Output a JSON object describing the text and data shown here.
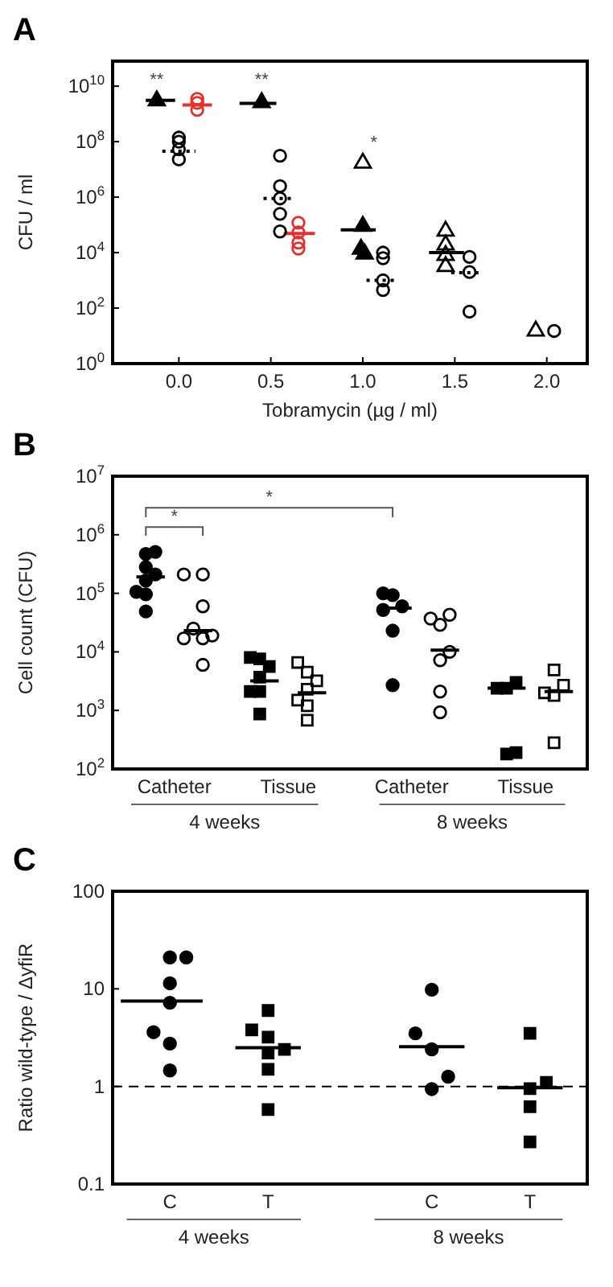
{
  "chart_data": [
    {
      "type": "scatter",
      "title": "A",
      "xlabel": "Tobramycin (µg / ml)",
      "ylabel": "CFU / ml",
      "log": "y",
      "xlim": [
        -0.36,
        2.22
      ],
      "xticks": [
        {
          "value": 0,
          "label": "0.0"
        },
        {
          "value": 0.5,
          "label": "0.5"
        },
        {
          "value": 1,
          "label": "1.0"
        },
        {
          "value": 1.5,
          "label": "1.5"
        },
        {
          "value": 2,
          "label": "2.0"
        }
      ],
      "ylim": [
        1,
        80000000000
      ],
      "yticks": [
        {
          "value": 1,
          "label": "10$^{0}$"
        },
        {
          "value": 100,
          "label": "10$^{2}$"
        },
        {
          "value": 10000,
          "label": "10$^{4}$"
        },
        {
          "value": 1000000,
          "label": "10$^{6}$"
        },
        {
          "value": 100000000,
          "label": "10$^{8}$"
        },
        {
          "value": 10000000000,
          "label": "10$^{10}$"
        }
      ],
      "annotations": [
        "**",
        "**",
        "*"
      ],
      "series": [
        {
          "marker": "triangle",
          "color": "#000000",
          "x": [
            -0.12,
            0.45,
            1.0,
            0.99,
            1.01
          ],
          "values": [
            3000000000,
            2600000000,
            90000,
            13500,
            9000
          ]
        },
        {
          "marker": "triangle",
          "color": "#000000",
          "x": [
            1.0,
            1.45,
            1.45,
            1.45,
            1.45,
            1.94
          ],
          "values": [
            17000000,
            60000,
            19000,
            8000,
            3200,
            15
          ]
        },
        {
          "marker": "circle",
          "color": "#000000",
          "x": [
            0,
            0,
            0,
            0,
            0.55,
            0.55,
            0.55,
            0.55,
            0.55,
            1.11,
            1.11,
            1.11,
            1.11,
            1.58,
            1.58,
            1.58,
            2.04
          ],
          "values": [
            140000000,
            100000000,
            53000000,
            23000000,
            31000000,
            2500000,
            900000,
            250000,
            58000,
            10000,
            6300,
            1000,
            450,
            7000,
            2000,
            75,
            15
          ]
        },
        {
          "marker": "circle",
          "color": "#e8302a",
          "x": [
            0.1,
            0.1,
            0.1,
            0.65,
            0.65,
            0.65,
            0.65
          ],
          "values": [
            3500000000,
            2500000000,
            1400000000,
            120000,
            53000,
            23000,
            14000
          ]
        },
        {
          "type": "line",
          "marker": "none",
          "line_style": "solid",
          "color": "#000000",
          "x": [
            -0.18,
            -0.02
          ],
          "values": [
            3100000000,
            3100000000
          ]
        },
        {
          "type": "line",
          "marker": "none",
          "line_style": "solid",
          "color": "#000000",
          "x": [
            0.33,
            0.53
          ],
          "values": [
            2400000000,
            2400000000
          ]
        },
        {
          "type": "line",
          "marker": "none",
          "line_style": "solid",
          "color": "#000000",
          "x": [
            0.88,
            1.07
          ],
          "values": [
            66000,
            66000
          ]
        },
        {
          "type": "line",
          "marker": "none",
          "line_style": "solid",
          "color": "#000000",
          "x": [
            1.36,
            1.55
          ],
          "values": [
            10000,
            10000
          ]
        },
        {
          "type": "line",
          "marker": "none",
          "line_style": "dotted",
          "color": "#000000",
          "x": [
            -0.09,
            0.09
          ],
          "values": [
            45000000,
            45000000
          ]
        },
        {
          "type": "line",
          "marker": "none",
          "line_style": "dotted",
          "color": "#000000",
          "x": [
            0.46,
            0.63
          ],
          "values": [
            900000,
            900000
          ]
        },
        {
          "type": "line",
          "marker": "none",
          "line_style": "dotted",
          "color": "#000000",
          "x": [
            1.02,
            1.19
          ],
          "values": [
            1000,
            1000
          ]
        },
        {
          "type": "line",
          "marker": "none",
          "line_style": "dotted",
          "color": "#000000",
          "x": [
            1.48,
            1.64
          ],
          "values": [
            1900,
            1900
          ]
        },
        {
          "type": "line",
          "marker": "none",
          "line_style": "solid",
          "color": "#e8302a",
          "x": [
            0.02,
            0.18
          ],
          "values": [
            2100000000,
            2100000000
          ]
        },
        {
          "type": "line",
          "marker": "none",
          "line_style": "solid",
          "color": "#e8302a",
          "x": [
            0.57,
            0.74
          ],
          "values": [
            49000,
            49000
          ]
        }
      ]
    },
    {
      "type": "scatter",
      "title": "B",
      "ylabel": "Cell count (CFU)",
      "log": "y",
      "categories": [
        null,
        null,
        null,
        null,
        null,
        null,
        "Catheter",
        null,
        null,
        null,
        null,
        null,
        null,
        null,
        null,
        null,
        null,
        null,
        "Tissue",
        null,
        null,
        null,
        null,
        null,
        null,
        null,
        null,
        null,
        null,
        null,
        null,
        "Catheter",
        null,
        null,
        null,
        null,
        null,
        null,
        null,
        null,
        null,
        null,
        null,
        "Tissue",
        null,
        null,
        null,
        null,
        null,
        null
      ],
      "ylim": [
        100,
        10000000
      ],
      "yticks": [
        {
          "value": 100,
          "label": "10$^{2}$"
        },
        {
          "value": 1000,
          "label": "10$^{3}$"
        },
        {
          "value": 10000,
          "label": "10$^{4}$"
        },
        {
          "value": 100000,
          "label": "10$^{5}$"
        },
        {
          "value": 1000000,
          "label": "10$^{6}$"
        },
        {
          "value": 10000000,
          "label": "10$^{7}$"
        }
      ],
      "annotations": [
        "*",
        "*",
        "4 weeks",
        "8 weeks"
      ],
      "series": [
        {
          "marker": "circle",
          "color": "#000000",
          "values": [
            null,
            null,
            106000,
            470000,
            510000,
            null,
            null,
            null,
            null,
            null,
            null,
            null,
            null,
            null,
            null,
            null,
            null,
            null,
            null,
            null,
            null,
            null,
            null,
            null,
            null,
            null,
            null,
            null,
            100000,
            93000,
            60000,
            null,
            null,
            null,
            null,
            null,
            null,
            null,
            null,
            null,
            null,
            null,
            null,
            null,
            null,
            null,
            null,
            null,
            null,
            null
          ]
        },
        {
          "marker": "circle",
          "color": "#000000",
          "values": [
            null,
            null,
            null,
            280000,
            210000,
            null,
            null,
            null,
            null,
            null,
            null,
            null,
            null,
            null,
            null,
            null,
            null,
            null,
            null,
            null,
            null,
            null,
            null,
            null,
            null,
            null,
            null,
            null,
            52000,
            23000,
            null,
            null,
            null,
            null,
            null,
            null,
            null,
            null,
            null,
            null,
            null,
            null,
            null,
            null,
            null,
            null,
            null,
            null,
            null,
            null
          ]
        },
        {
          "marker": "circle",
          "color": "#000000",
          "values": [
            null,
            null,
            null,
            165000,
            null,
            null,
            null,
            null,
            null,
            null,
            null,
            null,
            null,
            null,
            null,
            null,
            null,
            null,
            null,
            null,
            null,
            null,
            null,
            null,
            null,
            null,
            null,
            null,
            null,
            2700,
            null,
            null,
            null,
            null,
            null,
            null,
            null,
            null,
            null,
            null,
            null,
            null,
            null,
            null,
            null,
            null,
            null,
            null,
            null,
            null
          ]
        },
        {
          "marker": "circle",
          "color": "#000000",
          "values": [
            null,
            null,
            null,
            96000,
            null,
            null,
            null,
            null,
            null,
            null,
            null,
            null,
            null,
            null,
            null,
            null,
            null,
            null,
            null,
            null,
            null,
            null,
            null,
            null,
            null,
            null,
            null,
            null,
            null,
            null,
            null,
            null,
            null,
            null,
            null,
            null,
            null,
            null,
            null,
            null,
            null,
            null,
            null,
            null,
            null,
            null,
            null,
            null,
            null,
            null
          ]
        },
        {
          "marker": "circle",
          "color": "#000000",
          "values": [
            null,
            null,
            null,
            49000,
            null,
            null,
            null,
            null,
            null,
            null,
            null,
            null,
            null,
            null,
            null,
            null,
            null,
            null,
            null,
            null,
            null,
            null,
            null,
            null,
            null,
            null,
            null,
            null,
            null,
            null,
            null,
            null,
            null,
            null,
            null,
            null,
            null,
            null,
            null,
            null,
            null,
            null,
            null,
            null,
            null,
            null,
            null,
            null,
            null,
            null
          ]
        },
        {
          "marker": "circle",
          "color": "#000000",
          "values": [
            null,
            null,
            null,
            null,
            null,
            null,
            null,
            210000,
            25000,
            210000,
            19000,
            null,
            null,
            null,
            null,
            null,
            null,
            null,
            null,
            null,
            null,
            null,
            null,
            null,
            null,
            null,
            null,
            null,
            null,
            null,
            null,
            null,
            null,
            37000,
            29000,
            43000,
            null,
            null,
            null,
            null,
            null,
            null,
            null,
            null,
            null,
            null,
            null,
            null,
            null,
            null
          ]
        },
        {
          "marker": "circle",
          "color": "#000000",
          "values": [
            null,
            null,
            null,
            null,
            null,
            null,
            null,
            17000,
            null,
            60000,
            null,
            null,
            null,
            null,
            null,
            null,
            null,
            null,
            null,
            null,
            null,
            null,
            null,
            null,
            null,
            null,
            null,
            null,
            null,
            null,
            null,
            null,
            null,
            null,
            7200,
            10000,
            null,
            null,
            null,
            null,
            null,
            null,
            null,
            null,
            null,
            null,
            null,
            null,
            null,
            null
          ]
        },
        {
          "marker": "circle",
          "color": "#000000",
          "values": [
            null,
            null,
            null,
            null,
            null,
            null,
            null,
            null,
            null,
            17000,
            null,
            null,
            null,
            null,
            null,
            null,
            null,
            null,
            null,
            null,
            null,
            null,
            null,
            null,
            null,
            null,
            null,
            null,
            null,
            null,
            null,
            null,
            null,
            null,
            2100,
            null,
            null,
            null,
            null,
            null,
            null,
            null,
            null,
            null,
            null,
            null,
            null,
            null,
            null,
            null
          ]
        },
        {
          "marker": "circle",
          "color": "#000000",
          "values": [
            null,
            null,
            null,
            null,
            null,
            null,
            null,
            null,
            null,
            6000,
            null,
            null,
            null,
            null,
            null,
            null,
            null,
            null,
            null,
            null,
            null,
            null,
            null,
            null,
            null,
            null,
            null,
            null,
            null,
            null,
            null,
            null,
            null,
            null,
            930,
            null,
            null,
            null,
            null,
            null,
            null,
            null,
            null,
            null,
            null,
            null,
            null,
            null,
            null,
            null
          ]
        },
        {
          "marker": "square",
          "color": "#000000",
          "values": [
            null,
            null,
            null,
            null,
            null,
            null,
            null,
            null,
            null,
            null,
            null,
            null,
            null,
            null,
            8000,
            7600,
            5600,
            null,
            null,
            null,
            null,
            null,
            null,
            null,
            null,
            null,
            null,
            null,
            null,
            null,
            null,
            null,
            null,
            null,
            null,
            null,
            null,
            null,
            null,
            null,
            2400,
            2400,
            3000,
            null,
            null,
            null,
            null,
            null,
            null,
            null
          ]
        },
        {
          "marker": "square",
          "color": "#000000",
          "values": [
            null,
            null,
            null,
            null,
            null,
            null,
            null,
            null,
            null,
            null,
            null,
            null,
            null,
            null,
            2100,
            3700,
            null,
            null,
            null,
            null,
            null,
            null,
            null,
            null,
            null,
            null,
            null,
            null,
            null,
            null,
            null,
            null,
            null,
            null,
            null,
            null,
            null,
            null,
            null,
            null,
            null,
            180,
            190,
            null,
            null,
            null,
            null,
            null,
            null,
            null
          ]
        },
        {
          "marker": "square",
          "color": "#000000",
          "values": [
            null,
            null,
            null,
            null,
            null,
            null,
            null,
            null,
            null,
            null,
            null,
            null,
            null,
            null,
            null,
            2100,
            null,
            null,
            null,
            null,
            null,
            null,
            null,
            null,
            null,
            null,
            null,
            null,
            null,
            null,
            null,
            null,
            null,
            null,
            null,
            null,
            null,
            null,
            null,
            null,
            null,
            null,
            null,
            null,
            null,
            null,
            null,
            null,
            null,
            null
          ]
        },
        {
          "marker": "square",
          "color": "#000000",
          "values": [
            null,
            null,
            null,
            null,
            null,
            null,
            null,
            null,
            null,
            null,
            null,
            null,
            null,
            null,
            null,
            870,
            null,
            null,
            null,
            null,
            null,
            null,
            null,
            null,
            null,
            null,
            null,
            null,
            null,
            null,
            null,
            null,
            null,
            null,
            null,
            null,
            null,
            null,
            null,
            null,
            null,
            null,
            null,
            null,
            null,
            null,
            null,
            null,
            null,
            null
          ]
        },
        {
          "marker": "square",
          "color": "#000000",
          "values": [
            null,
            null,
            null,
            null,
            null,
            null,
            null,
            null,
            null,
            null,
            null,
            null,
            null,
            null,
            null,
            null,
            null,
            null,
            null,
            6600,
            4500,
            3200,
            null,
            null,
            null,
            null,
            null,
            null,
            null,
            null,
            null,
            null,
            null,
            null,
            null,
            null,
            null,
            null,
            null,
            null,
            null,
            null,
            null,
            null,
            null,
            2000,
            4900,
            2700,
            null,
            null
          ]
        },
        {
          "marker": "square",
          "color": "#000000",
          "values": [
            null,
            null,
            null,
            null,
            null,
            null,
            null,
            null,
            null,
            null,
            null,
            null,
            null,
            null,
            null,
            null,
            null,
            null,
            null,
            1500,
            2300,
            null,
            null,
            null,
            null,
            null,
            null,
            null,
            null,
            null,
            null,
            null,
            null,
            null,
            null,
            null,
            null,
            null,
            null,
            null,
            null,
            null,
            null,
            null,
            null,
            null,
            1800,
            null,
            null,
            null
          ]
        },
        {
          "marker": "square",
          "color": "#000000",
          "values": [
            null,
            null,
            null,
            null,
            null,
            null,
            null,
            null,
            null,
            null,
            null,
            null,
            null,
            null,
            null,
            null,
            null,
            null,
            null,
            null,
            1200,
            null,
            null,
            null,
            null,
            null,
            null,
            null,
            null,
            null,
            null,
            null,
            null,
            null,
            null,
            null,
            null,
            null,
            null,
            null,
            null,
            null,
            null,
            null,
            null,
            null,
            280,
            null,
            null,
            null
          ]
        },
        {
          "marker": "square",
          "color": "#000000",
          "values": [
            null,
            null,
            null,
            null,
            null,
            null,
            null,
            null,
            null,
            null,
            null,
            null,
            null,
            null,
            null,
            null,
            null,
            null,
            null,
            null,
            680,
            null,
            null,
            null,
            null,
            null,
            null,
            null,
            null,
            null,
            null,
            null,
            null,
            null,
            null,
            null,
            null,
            null,
            null,
            null,
            null,
            null,
            null,
            null,
            null,
            null,
            null,
            null,
            null,
            null
          ]
        },
        {
          "type": "line",
          "marker": "none",
          "line_style": "solid",
          "color": "#000000",
          "values": [
            null,
            null,
            190000,
            190000,
            190000,
            190000,
            null,
            23000,
            23000,
            23000,
            23000,
            null,
            null,
            null,
            3200,
            3200,
            3200,
            3200,
            null,
            2000,
            2000,
            2000,
            2000,
            null,
            null,
            null,
            null,
            null,
            56000,
            56000,
            56000,
            56000,
            null,
            10700,
            10700,
            10700,
            10700,
            null,
            null,
            2400,
            2400,
            2400,
            2400,
            2400,
            null,
            2100,
            2100,
            2100,
            2100,
            null
          ]
        }
      ]
    },
    {
      "type": "scatter",
      "title": "C",
      "ylabel": "Ratio wild-type / ΔyfiR",
      "log": "y",
      "categories": [
        null,
        null,
        null,
        "C",
        null,
        null,
        null,
        null,
        null,
        "T",
        null,
        null,
        null,
        null,
        null,
        null,
        null,
        null,
        null,
        "C",
        null,
        null,
        null,
        null,
        null,
        "T",
        null,
        null,
        null
      ],
      "ylim": [
        0.1,
        100
      ],
      "yticks": [
        0.1,
        1,
        10,
        100
      ],
      "annotations": [
        "4 weeks",
        "8 weeks"
      ],
      "ref_lines": [
        {
          "axis": "y",
          "value": 1,
          "line_style": "dashed",
          "color": "#000000"
        }
      ],
      "series": [
        {
          "marker": "circle",
          "color": "#000000",
          "values": [
            null,
            null,
            3.6,
            21,
            21,
            null,
            null,
            null,
            null,
            null,
            null,
            null,
            null,
            null,
            null,
            null,
            null,
            null,
            3.5,
            9.8,
            1.26,
            null,
            null,
            null,
            null,
            null,
            null,
            null,
            null
          ]
        },
        {
          "marker": "circle",
          "color": "#000000",
          "values": [
            null,
            null,
            null,
            11.4,
            null,
            null,
            null,
            null,
            null,
            null,
            null,
            null,
            null,
            null,
            null,
            null,
            null,
            null,
            null,
            2.4,
            null,
            null,
            null,
            null,
            null,
            null,
            null,
            null,
            null
          ]
        },
        {
          "marker": "circle",
          "color": "#000000",
          "values": [
            null,
            null,
            null,
            7.2,
            null,
            null,
            null,
            null,
            null,
            null,
            null,
            null,
            null,
            null,
            null,
            null,
            null,
            null,
            null,
            0.94,
            null,
            null,
            null,
            null,
            null,
            null,
            null,
            null,
            null
          ]
        },
        {
          "marker": "circle",
          "color": "#000000",
          "values": [
            null,
            null,
            null,
            2.75,
            null,
            null,
            null,
            null,
            null,
            null,
            null,
            null,
            null,
            null,
            null,
            null,
            null,
            null,
            null,
            null,
            null,
            null,
            null,
            null,
            null,
            null,
            null,
            null,
            null
          ]
        },
        {
          "marker": "circle",
          "color": "#000000",
          "values": [
            null,
            null,
            null,
            1.46,
            null,
            null,
            null,
            null,
            null,
            null,
            null,
            null,
            null,
            null,
            null,
            null,
            null,
            null,
            null,
            null,
            null,
            null,
            null,
            null,
            null,
            null,
            null,
            null,
            null
          ]
        },
        {
          "marker": "square",
          "color": "#000000",
          "values": [
            null,
            null,
            null,
            null,
            null,
            null,
            null,
            null,
            3.8,
            6,
            2.4,
            null,
            null,
            null,
            null,
            null,
            null,
            null,
            null,
            null,
            null,
            null,
            null,
            null,
            null,
            3.5,
            1.1,
            null,
            null
          ]
        },
        {
          "marker": "square",
          "color": "#000000",
          "values": [
            null,
            null,
            null,
            null,
            null,
            null,
            null,
            null,
            null,
            3.2,
            null,
            null,
            null,
            null,
            null,
            null,
            null,
            null,
            null,
            null,
            null,
            null,
            null,
            null,
            null,
            0.95,
            null,
            null,
            null
          ]
        },
        {
          "marker": "square",
          "color": "#000000",
          "values": [
            null,
            null,
            null,
            null,
            null,
            null,
            null,
            null,
            null,
            2.2,
            null,
            null,
            null,
            null,
            null,
            null,
            null,
            null,
            null,
            null,
            null,
            null,
            null,
            null,
            null,
            0.62,
            null,
            null,
            null
          ]
        },
        {
          "marker": "square",
          "color": "#000000",
          "values": [
            null,
            null,
            null,
            null,
            null,
            null,
            null,
            null,
            null,
            1.5,
            null,
            null,
            null,
            null,
            null,
            null,
            null,
            null,
            null,
            null,
            null,
            null,
            null,
            null,
            null,
            0.27,
            null,
            null,
            null
          ]
        },
        {
          "marker": "square",
          "color": "#000000",
          "values": [
            null,
            null,
            null,
            null,
            null,
            null,
            null,
            null,
            null,
            0.58,
            null,
            null,
            null,
            null,
            null,
            null,
            null,
            null,
            null,
            null,
            null,
            null,
            null,
            null,
            null,
            null,
            null,
            null,
            null
          ]
        },
        {
          "type": "line",
          "marker": "none",
          "line_style": "solid",
          "color": "#000000",
          "values": [
            7.5,
            7.5,
            7.5,
            7.5,
            7.5,
            7.5,
            null,
            2.5,
            2.5,
            2.5,
            2.5,
            2.5,
            null,
            null,
            null,
            null,
            null,
            2.55,
            2.55,
            2.55,
            2.55,
            2.55,
            null,
            0.97,
            0.97,
            0.97,
            0.97,
            0.97,
            null
          ]
        }
      ]
    }
  ]
}
